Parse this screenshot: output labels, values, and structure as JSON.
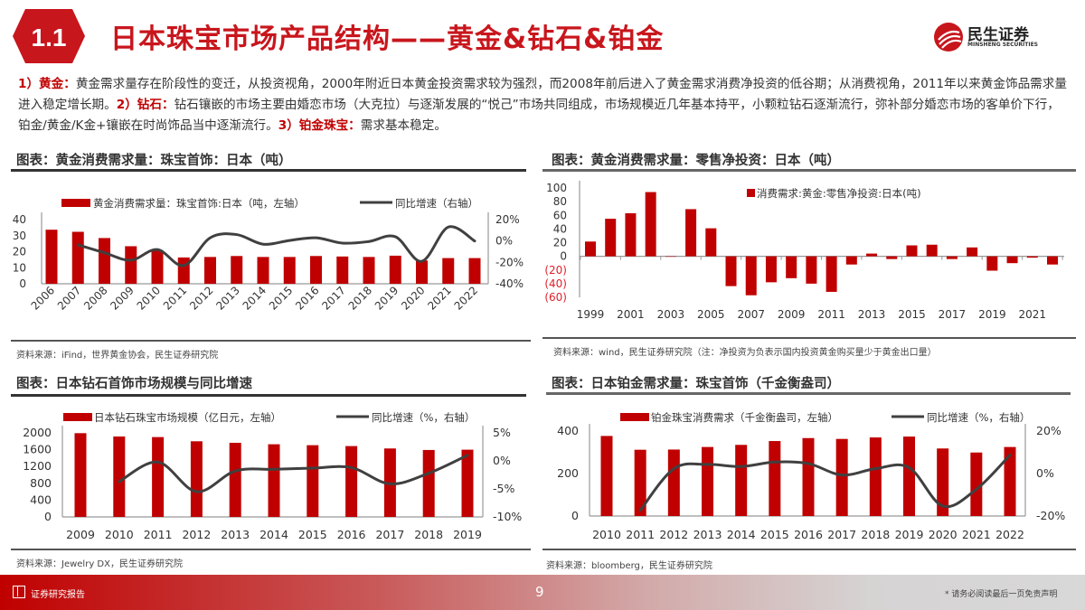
{
  "header": {
    "section_number": "1.1",
    "title": "日本珠宝市场产品结构——黄金&钻石&铂金",
    "logo_name": "民生证券",
    "logo_sub": "MINSHENG SECURITIES"
  },
  "intro": {
    "p1_label": "1）黄金：",
    "p1_text": "黄金需求量存在阶段性的变迁，从投资视角，2000年附近日本黄金投资需求较为强烈，而2008年前后进入了黄金需求消费净投资的低谷期；从消费视角，2011年以来黄金饰品需求量进入稳定增长期。",
    "p2_label": "2）钻石：",
    "p2_text": "钻石镶嵌的市场主要由婚恋市场（大克拉）与逐渐发展的“悦己”市场共同组成，市场规模近几年基本持平，小颗粒钻石逐渐流行，弥补部分婚恋市场的客单价下行，铂金/黄金/K金+镶嵌在时尚饰品当中逐渐流行。",
    "p3_label": "3）铂金珠宝：",
    "p3_text": "需求基本稳定。"
  },
  "panels": [
    {
      "title": "图表：黄金消费需求量：珠宝首饰：日本（吨）",
      "source": "资料来源：iFind，世界黄金协会，民生证券研究院"
    },
    {
      "title": "图表：黄金消费需求量：零售净投资：日本（吨）",
      "source": "资料来源：wind，民生证券研究院（注：净投资为负表示国内投资黄金购买量少于黄金出口量）"
    },
    {
      "title": "图表：日本钻石首饰市场规模与同比增速",
      "source": "资料来源：Jewelry DX，民生证券研究院"
    },
    {
      "title": "图表：日本铂金需求量：珠宝首饰（千金衡盎司）",
      "source": "资料来源：bloomberg，民生证券研究院"
    }
  ],
  "colors": {
    "bar": "#c00000",
    "line": "#404040",
    "accent": "#c8161d",
    "negative_label": "#e0202a"
  },
  "chart_data": [
    {
      "type": "bar+line",
      "categories": [
        "2006",
        "2007",
        "2008",
        "2009",
        "2010",
        "2011",
        "2012",
        "2013",
        "2014",
        "2015",
        "2016",
        "2017",
        "2018",
        "2019",
        "2020",
        "2021",
        "2022"
      ],
      "series": [
        {
          "name": "黄金消费需求量：珠宝首饰:日本（吨，左轴）",
          "type": "bar",
          "axis": "left",
          "values": [
            33.7,
            32.4,
            28.5,
            23.4,
            21,
            16.4,
            16.7,
            17.3,
            16.7,
            16.7,
            17.3,
            17,
            16.7,
            17.5,
            14.5,
            16,
            16
          ]
        },
        {
          "name": "同比增速（右轴）",
          "type": "line",
          "axis": "right",
          "values": [
            null,
            -3.6,
            -11,
            -18,
            -8,
            -23,
            3,
            6,
            -3,
            0.5,
            3,
            -2,
            -0.5,
            4,
            -19,
            13,
            0
          ]
        }
      ],
      "ylim": [
        0,
        40
      ],
      "yticks": [
        "0",
        "10",
        "20",
        "30",
        "40"
      ],
      "y2lim": [
        -40,
        20
      ],
      "y2ticks": [
        "-40%",
        "-20%",
        "0%",
        "20%"
      ],
      "legend": "top",
      "grid": false
    },
    {
      "type": "bar",
      "categories": [
        "1999",
        "2000",
        "2001",
        "2002",
        "2003",
        "2004",
        "2005",
        "2006",
        "2007",
        "2008",
        "2009",
        "2010",
        "2011",
        "2012",
        "2013",
        "2014",
        "2015",
        "2016",
        "2017",
        "2018",
        "2019",
        "2020",
        "2021",
        "2022"
      ],
      "xtick_labels": [
        "1999",
        "",
        "2001",
        "",
        "2003",
        "",
        "2005",
        "",
        "2007",
        "",
        "2009",
        "",
        "2011",
        "",
        "2013",
        "",
        "2015",
        "",
        "2017",
        "",
        "2019",
        "",
        "2021",
        ""
      ],
      "series": [
        {
          "name": "消费需求:黄金:零售净投资:日本(吨)",
          "type": "bar",
          "axis": "left",
          "values": [
            21.6,
            55,
            63,
            94,
            0,
            69,
            41,
            -43.6,
            -57,
            -38,
            -32,
            -40,
            -52,
            -12,
            4,
            -4,
            16,
            17,
            -4,
            13,
            -21,
            -10,
            -2,
            -12
          ]
        }
      ],
      "ylim": [
        -60,
        100
      ],
      "yticks": [
        "(60)",
        "(40)",
        "(20)",
        "0",
        "20",
        "40",
        "60",
        "80",
        "100"
      ],
      "legend": "top-right",
      "grid": false
    },
    {
      "type": "bar+line",
      "categories": [
        "2009",
        "2010",
        "2011",
        "2012",
        "2013",
        "2014",
        "2015",
        "2016",
        "2017",
        "2018",
        "2019"
      ],
      "series": [
        {
          "name": "日本钻石珠宝市场规模（亿日元，左轴）",
          "type": "bar",
          "axis": "left",
          "values": [
            1993,
            1914,
            1900,
            1800,
            1764,
            1729,
            1707,
            1686,
            1629,
            1593,
            1600
          ]
        },
        {
          "name": "同比增速（%，右轴）",
          "type": "line",
          "axis": "right",
          "values": [
            null,
            -3.7,
            -0.2,
            -5.5,
            -1.8,
            -1.5,
            -1.3,
            -1.2,
            -4.1,
            -2.2,
            1
          ]
        }
      ],
      "ylim": [
        0,
        2000
      ],
      "yticks": [
        "0",
        "400",
        "800",
        "1200",
        "1600",
        "2000"
      ],
      "y2lim": [
        -10,
        5
      ],
      "y2ticks": [
        "-10%",
        "-5%",
        "0%",
        "5%"
      ],
      "legend": "top",
      "grid": false
    },
    {
      "type": "bar+line",
      "categories": [
        "2010",
        "2011",
        "2012",
        "2013",
        "2014",
        "2015",
        "2016",
        "2017",
        "2018",
        "2019",
        "2020",
        "2021",
        "2022"
      ],
      "series": [
        {
          "name": "铂金珠宝消费需求（千金衡盎司，左轴）",
          "type": "bar",
          "axis": "left",
          "values": [
            377,
            312,
            313,
            325,
            335,
            353,
            367,
            363,
            370,
            374,
            318,
            299,
            325
          ]
        },
        {
          "name": "同比增速（%，右轴）",
          "type": "line",
          "axis": "right",
          "values": [
            null,
            -17.3,
            2.3,
            4.3,
            3.3,
            5.4,
            4.7,
            -0.7,
            2.3,
            2.8,
            -15.3,
            -7.4,
            8.7
          ]
        }
      ],
      "ylim": [
        0,
        400
      ],
      "yticks": [
        "0",
        "200",
        "400"
      ],
      "y2lim": [
        -20,
        20
      ],
      "y2ticks": [
        "-20%",
        "0%",
        "20%"
      ],
      "legend": "top",
      "grid": false
    }
  ],
  "footer": {
    "left_label": "证券研究报告",
    "page_number": "9",
    "disclaimer": "* 请务必阅读最后一页免责声明"
  }
}
